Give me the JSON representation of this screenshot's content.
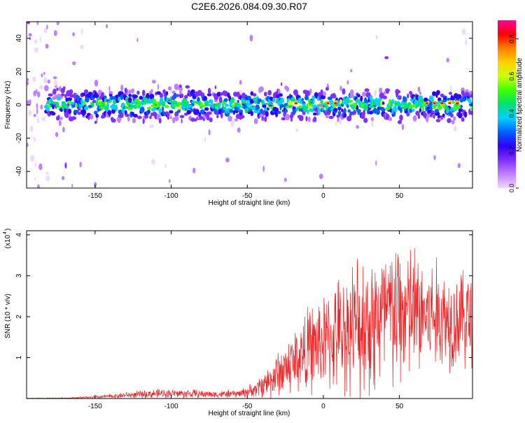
{
  "title": "C2E6.2026.084.09.30.R07",
  "colorbar": {
    "label": "Normalized spectral amplitude",
    "ticks": [
      "0.0",
      "0.2",
      "0.4",
      "0.6",
      "0.8"
    ],
    "tick_values": [
      0.0,
      0.2,
      0.4,
      0.6,
      0.8
    ],
    "range": [
      0,
      0.9
    ]
  },
  "chart_data": [
    {
      "type": "heatmap",
      "name": "spectrogram",
      "title": "C2E6.2026.084.09.30.R07",
      "xlabel": "Height of straight line (km)",
      "ylabel": "Frequency (Hz)",
      "xlim": [
        -195,
        98
      ],
      "ylim": [
        -50,
        50
      ],
      "xticks": [
        -150,
        -100,
        -50,
        0,
        50
      ],
      "xtick_labels": [
        "-150",
        "-100",
        "-50",
        "0",
        "50"
      ],
      "yticks": [
        -40,
        -20,
        0,
        20,
        40
      ],
      "ytick_labels": [
        "-40",
        "-20",
        "0",
        "20",
        "40"
      ],
      "band_center_hz": 0,
      "band_halfwidth_hz": 8,
      "hot_spots_km": [
        -18,
        3,
        8,
        68,
        73,
        78,
        83,
        88
      ],
      "colormap": [
        "#f0d8ff",
        "#c080ff",
        "#8030ff",
        "#3000ff",
        "#0060ff",
        "#00d0ff",
        "#00e070",
        "#40ff00",
        "#d0ff00",
        "#ffd000",
        "#ff8000",
        "#ff0000",
        "#ff00a0"
      ]
    },
    {
      "type": "line",
      "name": "snr",
      "xlabel": "Height of straight line (km)",
      "ylabel": "SNR (10 * v/v)",
      "yexponent_label": "(x10",
      "yexponent_power": "4",
      "xlim": [
        -195,
        98
      ],
      "ylim": [
        0,
        4.1
      ],
      "xticks": [
        -150,
        -100,
        -50,
        0,
        50
      ],
      "xtick_labels": [
        "-150",
        "-100",
        "-50",
        "0",
        "50"
      ],
      "yticks": [
        1,
        2,
        3,
        4
      ],
      "ytick_labels": [
        "1",
        "2",
        "3",
        "4"
      ],
      "color": "#ee2222",
      "envelope": {
        "x": [
          -195,
          -170,
          -150,
          -130,
          -110,
          -90,
          -70,
          -55,
          -45,
          -35,
          -25,
          -15,
          -5,
          5,
          15,
          25,
          35,
          45,
          55,
          65,
          75,
          85,
          98
        ],
        "mean": [
          0.005,
          0.01,
          0.03,
          0.08,
          0.12,
          0.12,
          0.1,
          0.12,
          0.22,
          0.45,
          0.75,
          1.05,
          1.3,
          1.45,
          1.65,
          1.85,
          1.95,
          2.05,
          2.1,
          2.05,
          2.0,
          1.95,
          2.0
        ],
        "spread": [
          0.005,
          0.01,
          0.03,
          0.06,
          0.09,
          0.09,
          0.07,
          0.08,
          0.15,
          0.35,
          0.55,
          0.75,
          0.9,
          1.0,
          1.2,
          1.45,
          1.55,
          1.55,
          1.45,
          1.25,
          1.1,
          1.0,
          1.0
        ]
      }
    }
  ]
}
